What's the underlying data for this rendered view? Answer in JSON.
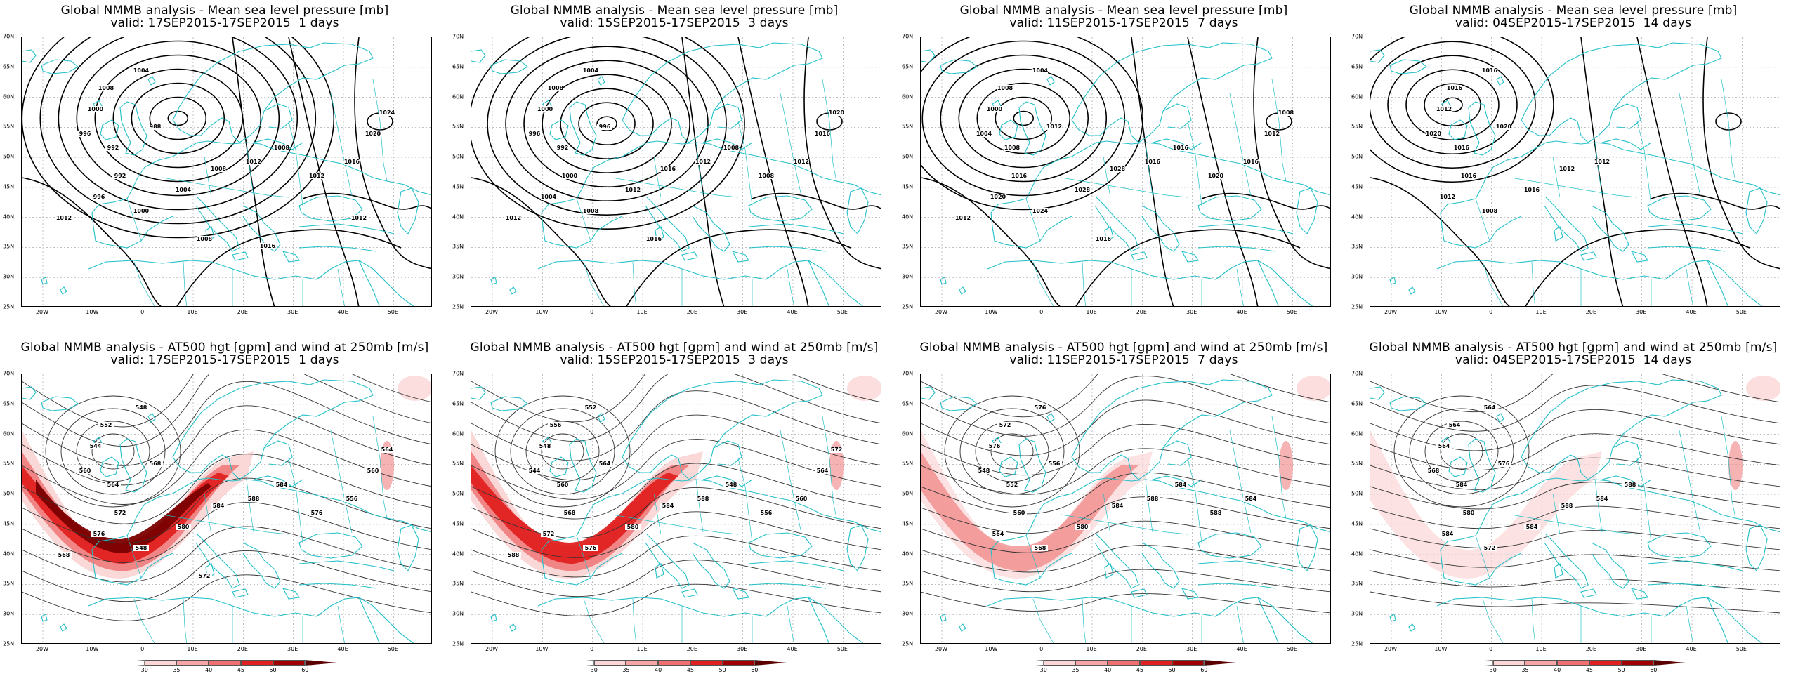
{
  "colors": {
    "coast": "#22c0c8",
    "contour": "#000000",
    "jet_light": "#fbd6d6",
    "jet_mid": "#f08080",
    "jet_strong": "#e02020",
    "jet_core": "#7a0000"
  },
  "axes": {
    "lat_labels": [
      "70N",
      "65N",
      "60N",
      "55N",
      "50N",
      "45N",
      "40N",
      "35N",
      "30N",
      "25N"
    ],
    "lon_labels": [
      "20W",
      "10W",
      "0",
      "10E",
      "20E",
      "30E",
      "40E",
      "50E"
    ]
  },
  "colorbar": {
    "labels": [
      "30",
      "35",
      "40",
      "45",
      "50",
      "60"
    ],
    "colors": [
      "#ffffff",
      "#fbd6d6",
      "#f6a6a6",
      "#f07070",
      "#e02020",
      "#a00000",
      "#5a0000"
    ]
  },
  "panels": [
    {
      "id": "mslp-1d",
      "title": "Global NMMB analysis - Mean sea level pressure [mb]",
      "subtitle": "valid: 17SEP2015-17SEP2015  1 days",
      "field": "mslp",
      "low_center": [
        0.38,
        0.3
      ],
      "contour_labels": [
        "1008",
        "1004",
        "1000",
        "996",
        "992",
        "988",
        "992",
        "996",
        "1000",
        "1004",
        "1008",
        "1012",
        "1008",
        "1012",
        "1016",
        "1020",
        "1024",
        "1012",
        "1008",
        "1016",
        "1012"
      ]
    },
    {
      "id": "mslp-3d",
      "title": "Global NMMB analysis - Mean sea level pressure [mb]",
      "subtitle": "valid: 15SEP2015-17SEP2015  3 days",
      "field": "mslp",
      "low_center": [
        0.33,
        0.32
      ],
      "contour_labels": [
        "1008",
        "1004",
        "1000",
        "996",
        "992",
        "996",
        "1000",
        "1004",
        "1008",
        "1012",
        "1016",
        "1012",
        "1008",
        "1008",
        "1012",
        "1016",
        "1020",
        "1012",
        "1016"
      ]
    },
    {
      "id": "mslp-7d",
      "title": "Global NMMB analysis - Mean sea level pressure [mb]",
      "subtitle": "valid: 11SEP2015-17SEP2015  7 days",
      "field": "mslp",
      "low_center": [
        0.25,
        0.3
      ],
      "contour_labels": [
        "1008",
        "1004",
        "1000",
        "1004",
        "1008",
        "1012",
        "1016",
        "1020",
        "1024",
        "1028",
        "1028",
        "1016",
        "1016",
        "1020",
        "1016",
        "1012",
        "1008",
        "1012",
        "1016"
      ]
    },
    {
      "id": "mslp-14d",
      "title": "Global NMMB analysis - Mean sea level pressure [mb]",
      "subtitle": "valid: 04SEP2015-17SEP2015  14 days",
      "field": "mslp",
      "low_center": [
        0.2,
        0.25
      ],
      "contour_labels": [
        "1016",
        "1016",
        "1012",
        "1020",
        "1016",
        "1020",
        "1016",
        "1012",
        "1008",
        "1016",
        "1012",
        "1012"
      ]
    },
    {
      "id": "z500-1d",
      "title": "Global NMMB analysis - AT500 hgt [gpm] and wind at 250mb [m/s]",
      "subtitle": "valid: 17SEP2015-17SEP2015  1 days",
      "field": "z500",
      "contour_labels": [
        "552",
        "548",
        "544",
        "560",
        "564",
        "568",
        "572",
        "576",
        "548",
        "580",
        "584",
        "588",
        "584",
        "576",
        "556",
        "560",
        "564",
        "568",
        "572"
      ]
    },
    {
      "id": "z500-3d",
      "title": "Global NMMB analysis - AT500 hgt [gpm] and wind at 250mb [m/s]",
      "subtitle": "valid: 15SEP2015-17SEP2015  3 days",
      "field": "z500",
      "contour_labels": [
        "556",
        "552",
        "548",
        "544",
        "560",
        "564",
        "568",
        "572",
        "576",
        "580",
        "584",
        "588",
        "548",
        "556",
        "560",
        "564",
        "572",
        "588"
      ]
    },
    {
      "id": "z500-7d",
      "title": "Global NMMB analysis - AT500 hgt [gpm] and wind at 250mb [m/s]",
      "subtitle": "valid: 11SEP2015-17SEP2015  7 days",
      "field": "z500",
      "contour_labels": [
        "572",
        "576",
        "576",
        "548",
        "552",
        "556",
        "560",
        "564",
        "568",
        "580",
        "584",
        "588",
        "584",
        "588",
        "584"
      ]
    },
    {
      "id": "z500-14d",
      "title": "Global NMMB analysis - AT500 hgt [gpm] and wind at 250mb [m/s]",
      "subtitle": "valid: 04SEP2015-17SEP2015  14 days",
      "field": "z500",
      "contour_labels": [
        "564",
        "564",
        "564",
        "568",
        "584",
        "576",
        "580",
        "584",
        "572",
        "584",
        "588",
        "584",
        "588"
      ]
    }
  ]
}
